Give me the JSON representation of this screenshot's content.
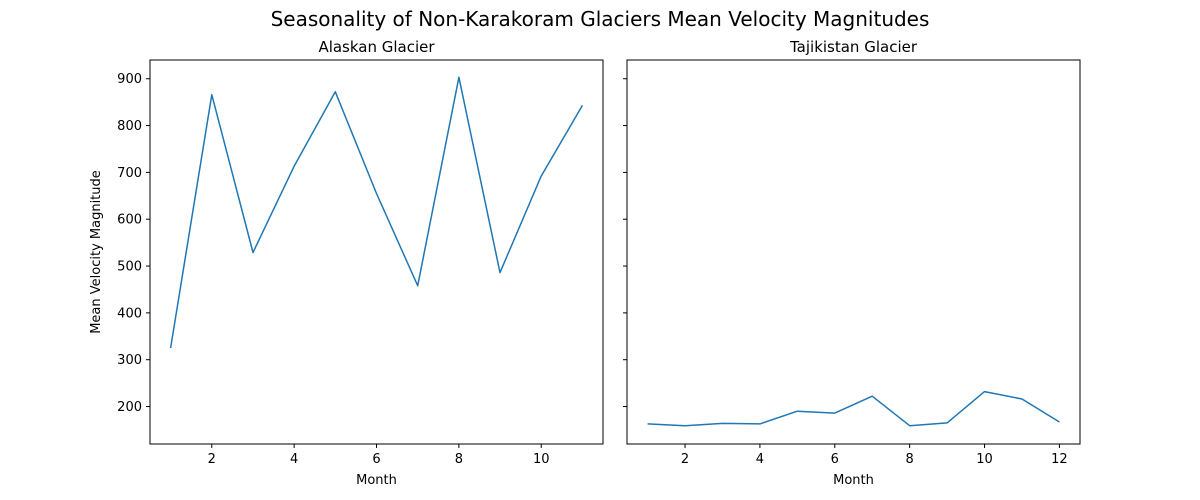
{
  "figure_title": "Seasonality of Non-Karakoram Glaciers Mean Velocity Magnitudes",
  "line_color": "#1f77b4",
  "chart_data": [
    {
      "type": "line",
      "title": "Alaskan Glacier",
      "xlabel": "Month",
      "ylabel": "Mean Velocity Magnitude",
      "xlim": [
        0.5,
        11.5
      ],
      "ylim": [
        120,
        940
      ],
      "xticks": [
        2,
        4,
        6,
        8,
        10
      ],
      "yticks": [
        200,
        300,
        400,
        500,
        600,
        700,
        800,
        900
      ],
      "show_ytick_labels": true,
      "series": [
        {
          "name": "Alaskan Glacier",
          "x": [
            1,
            2,
            3,
            4,
            5,
            6,
            7,
            8,
            9,
            10,
            11
          ],
          "y": [
            325,
            866,
            529,
            713,
            872,
            655,
            458,
            903,
            486,
            692,
            843
          ]
        }
      ]
    },
    {
      "type": "line",
      "title": "Tajikistan Glacier",
      "xlabel": "Month",
      "ylabel": "",
      "xlim": [
        0.45,
        12.55
      ],
      "ylim": [
        120,
        940
      ],
      "xticks": [
        2,
        4,
        6,
        8,
        10,
        12
      ],
      "yticks": [
        200,
        300,
        400,
        500,
        600,
        700,
        800,
        900
      ],
      "show_ytick_labels": false,
      "series": [
        {
          "name": "Tajikistan Glacier",
          "x": [
            1,
            2,
            3,
            4,
            5,
            6,
            7,
            8,
            9,
            10,
            11,
            12
          ],
          "y": [
            163,
            159,
            164,
            163,
            190,
            186,
            222,
            159,
            165,
            232,
            216,
            167
          ]
        }
      ]
    }
  ]
}
